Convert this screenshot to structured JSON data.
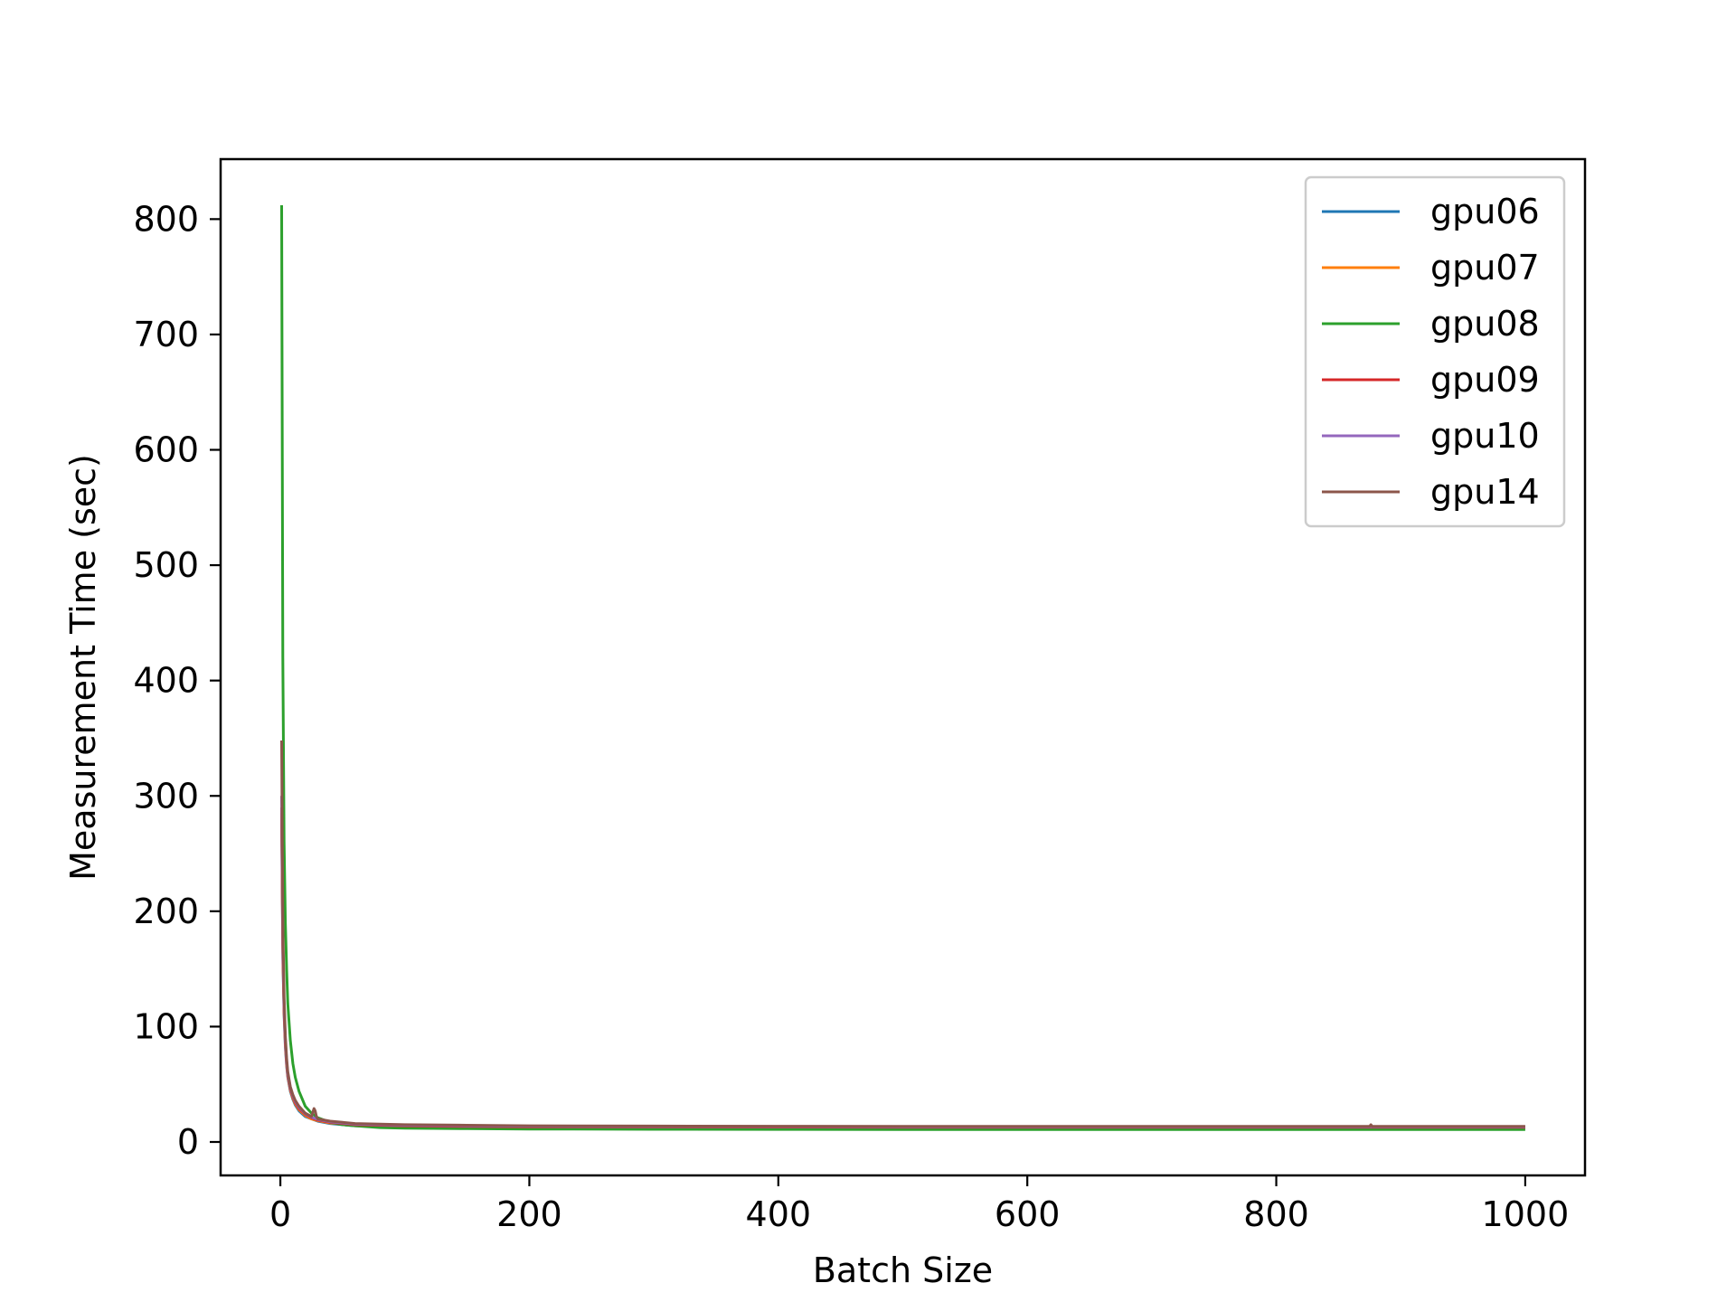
{
  "chart_data": {
    "type": "line",
    "title": "",
    "xlabel": "Batch Size",
    "ylabel": "Measurement Time (sec)",
    "xlim": [
      -48,
      1048
    ],
    "ylim": [
      -29,
      852
    ],
    "xticks": [
      0,
      200,
      400,
      600,
      800,
      1000
    ],
    "yticks": [
      0,
      100,
      200,
      300,
      400,
      500,
      600,
      700,
      800
    ],
    "xtick_labels": [
      "0",
      "200",
      "400",
      "600",
      "800",
      "1000"
    ],
    "ytick_labels": [
      "0",
      "100",
      "200",
      "300",
      "400",
      "500",
      "600",
      "700",
      "800"
    ],
    "grid": false,
    "legend_position": "top-right",
    "series": [
      {
        "name": "gpu06",
        "color": "#1f77b4",
        "x": [
          1,
          2,
          3,
          4,
          5,
          6,
          8,
          10,
          12,
          15,
          20,
          25,
          30,
          40,
          50,
          60,
          80,
          100,
          150,
          200,
          300,
          400,
          500,
          600,
          700,
          800,
          900,
          1000
        ],
        "y": [
          280,
          160,
          110,
          82,
          66,
          56,
          44,
          37,
          32,
          27,
          22,
          20,
          18,
          16,
          15,
          14,
          13.5,
          13,
          12.5,
          12.3,
          12.2,
          12.1,
          12.1,
          12.0,
          12.0,
          12.0,
          12.0,
          12.0
        ]
      },
      {
        "name": "gpu07",
        "color": "#ff7f0e",
        "x": [
          1,
          2,
          3,
          4,
          5,
          6,
          8,
          10,
          12,
          15,
          20,
          25,
          30,
          40,
          50,
          60,
          80,
          100,
          150,
          200,
          300,
          400,
          500,
          600,
          700,
          800,
          900,
          1000
        ],
        "y": [
          285,
          165,
          112,
          84,
          67,
          57,
          45,
          38,
          33,
          28,
          23,
          20,
          18.5,
          16.5,
          15.5,
          14.5,
          14,
          13.5,
          13,
          12.8,
          12.6,
          12.5,
          12.5,
          12.4,
          12.4,
          12.4,
          12.4,
          12.4
        ]
      },
      {
        "name": "gpu08",
        "color": "#2ca02c",
        "x": [
          1,
          2,
          3,
          4,
          5,
          6,
          8,
          10,
          12,
          15,
          20,
          25,
          30,
          40,
          50,
          60,
          80,
          100,
          150,
          200,
          300,
          400,
          500,
          600,
          700,
          800,
          900,
          1000
        ],
        "y": [
          812,
          420,
          260,
          190,
          150,
          120,
          88,
          68,
          56,
          44,
          31,
          25,
          21,
          17,
          15,
          14,
          12.5,
          12,
          11.5,
          11.2,
          11,
          10.9,
          10.8,
          10.8,
          10.8,
          10.8,
          10.8,
          10.8
        ]
      },
      {
        "name": "gpu09",
        "color": "#d62728",
        "x": [
          1,
          2,
          3,
          4,
          5,
          6,
          8,
          10,
          12,
          15,
          20,
          25,
          30,
          40,
          50,
          60,
          80,
          100,
          150,
          200,
          300,
          400,
          500,
          600,
          700,
          800,
          900,
          1000
        ],
        "y": [
          290,
          170,
          115,
          86,
          69,
          58,
          46,
          39,
          34,
          29,
          24,
          21,
          19,
          17,
          16,
          15,
          14.5,
          14,
          13.5,
          13.2,
          13,
          12.9,
          12.8,
          12.8,
          12.8,
          12.8,
          12.8,
          12.8
        ]
      },
      {
        "name": "gpu10",
        "color": "#9467bd",
        "x": [
          1,
          2,
          3,
          4,
          5,
          6,
          8,
          10,
          12,
          15,
          20,
          25,
          30,
          40,
          50,
          60,
          80,
          100,
          150,
          200,
          300,
          400,
          500,
          600,
          700,
          800,
          900,
          1000
        ],
        "y": [
          300,
          175,
          118,
          88,
          70,
          59,
          47,
          40,
          35,
          30,
          24.5,
          21.5,
          19.5,
          17.5,
          16.5,
          15.5,
          15,
          14.5,
          14,
          13.6,
          13.4,
          13.3,
          13.2,
          13.2,
          13.2,
          13.2,
          13.2,
          13.2
        ]
      },
      {
        "name": "gpu14",
        "color": "#8c564b",
        "x": [
          1,
          2,
          3,
          4,
          5,
          6,
          8,
          10,
          12,
          15,
          20,
          25,
          27,
          28,
          29,
          30,
          40,
          50,
          60,
          80,
          100,
          150,
          200,
          300,
          400,
          500,
          600,
          700,
          800,
          875,
          876,
          877,
          900,
          1000
        ],
        "y": [
          348,
          190,
          125,
          92,
          73,
          61,
          48,
          41,
          36,
          31,
          25,
          22,
          29,
          27,
          22,
          20,
          18,
          17,
          16,
          15.5,
          15,
          14.5,
          14,
          13.8,
          13.6,
          13.5,
          13.5,
          13.5,
          13.5,
          13.5,
          15,
          13.5,
          13.5,
          13.5
        ]
      }
    ]
  }
}
